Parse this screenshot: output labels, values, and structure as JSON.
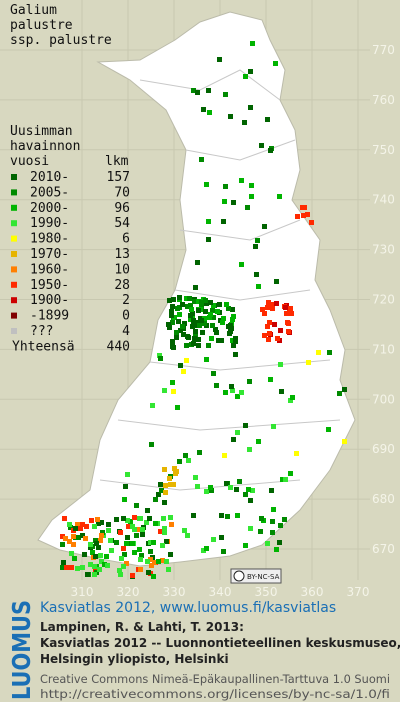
{
  "title": [
    "Galium",
    "palustre",
    "ssp. palustre"
  ],
  "legend": {
    "heading": [
      "Uusimman",
      "havainnon"
    ],
    "year_header": "vuosi",
    "count_header": "lkm",
    "rows": [
      {
        "label": "2010-",
        "count": 157,
        "color": "#006400"
      },
      {
        "label": "2005-",
        "count": 70,
        "color": "#008a00"
      },
      {
        "label": "2000-",
        "count": 96,
        "color": "#00b400"
      },
      {
        "label": "1990-",
        "count": 54,
        "color": "#33e633"
      },
      {
        "label": "1980-",
        "count": 6,
        "color": "#ffff00"
      },
      {
        "label": "1970-",
        "count": 13,
        "color": "#e6b400"
      },
      {
        "label": "1960-",
        "count": 10,
        "color": "#ff7f00"
      },
      {
        "label": "1950-",
        "count": 28,
        "color": "#ff2a00"
      },
      {
        "label": "1900-",
        "count": 2,
        "color": "#cc0000"
      },
      {
        "label": "-1899",
        "count": 0,
        "color": "#800000"
      },
      {
        "label": "???",
        "count": 4,
        "color": "#c0c0c0"
      }
    ],
    "total": {
      "label": "Yhteensä",
      "count": 440
    }
  },
  "grid": {
    "north_labels": [
      770,
      760,
      750,
      740,
      730,
      720,
      710,
      700,
      690,
      680,
      670
    ],
    "east_labels": [
      310,
      320,
      330,
      340,
      350,
      360,
      370
    ]
  },
  "license_badge": "BY-NC-SA",
  "footer": {
    "brand": "LUOMUS",
    "link": "Kasviatlas 2012, www.luomus.fi/kasviatlas",
    "citation": [
      "Lampinen, R. & Lahti, T. 2013:",
      "Kasviatlas 2012 -- Luonnontieteellinen keskusmuseo,",
      "Helsingin yliopisto, Helsinki"
    ],
    "license": [
      "Creative Commons Nimeä-Epäkaupallinen-Tarttuva 1.0 Suomi",
      "http://creativecommons.org/licenses/by-nc-sa/1.0/fi"
    ]
  }
}
